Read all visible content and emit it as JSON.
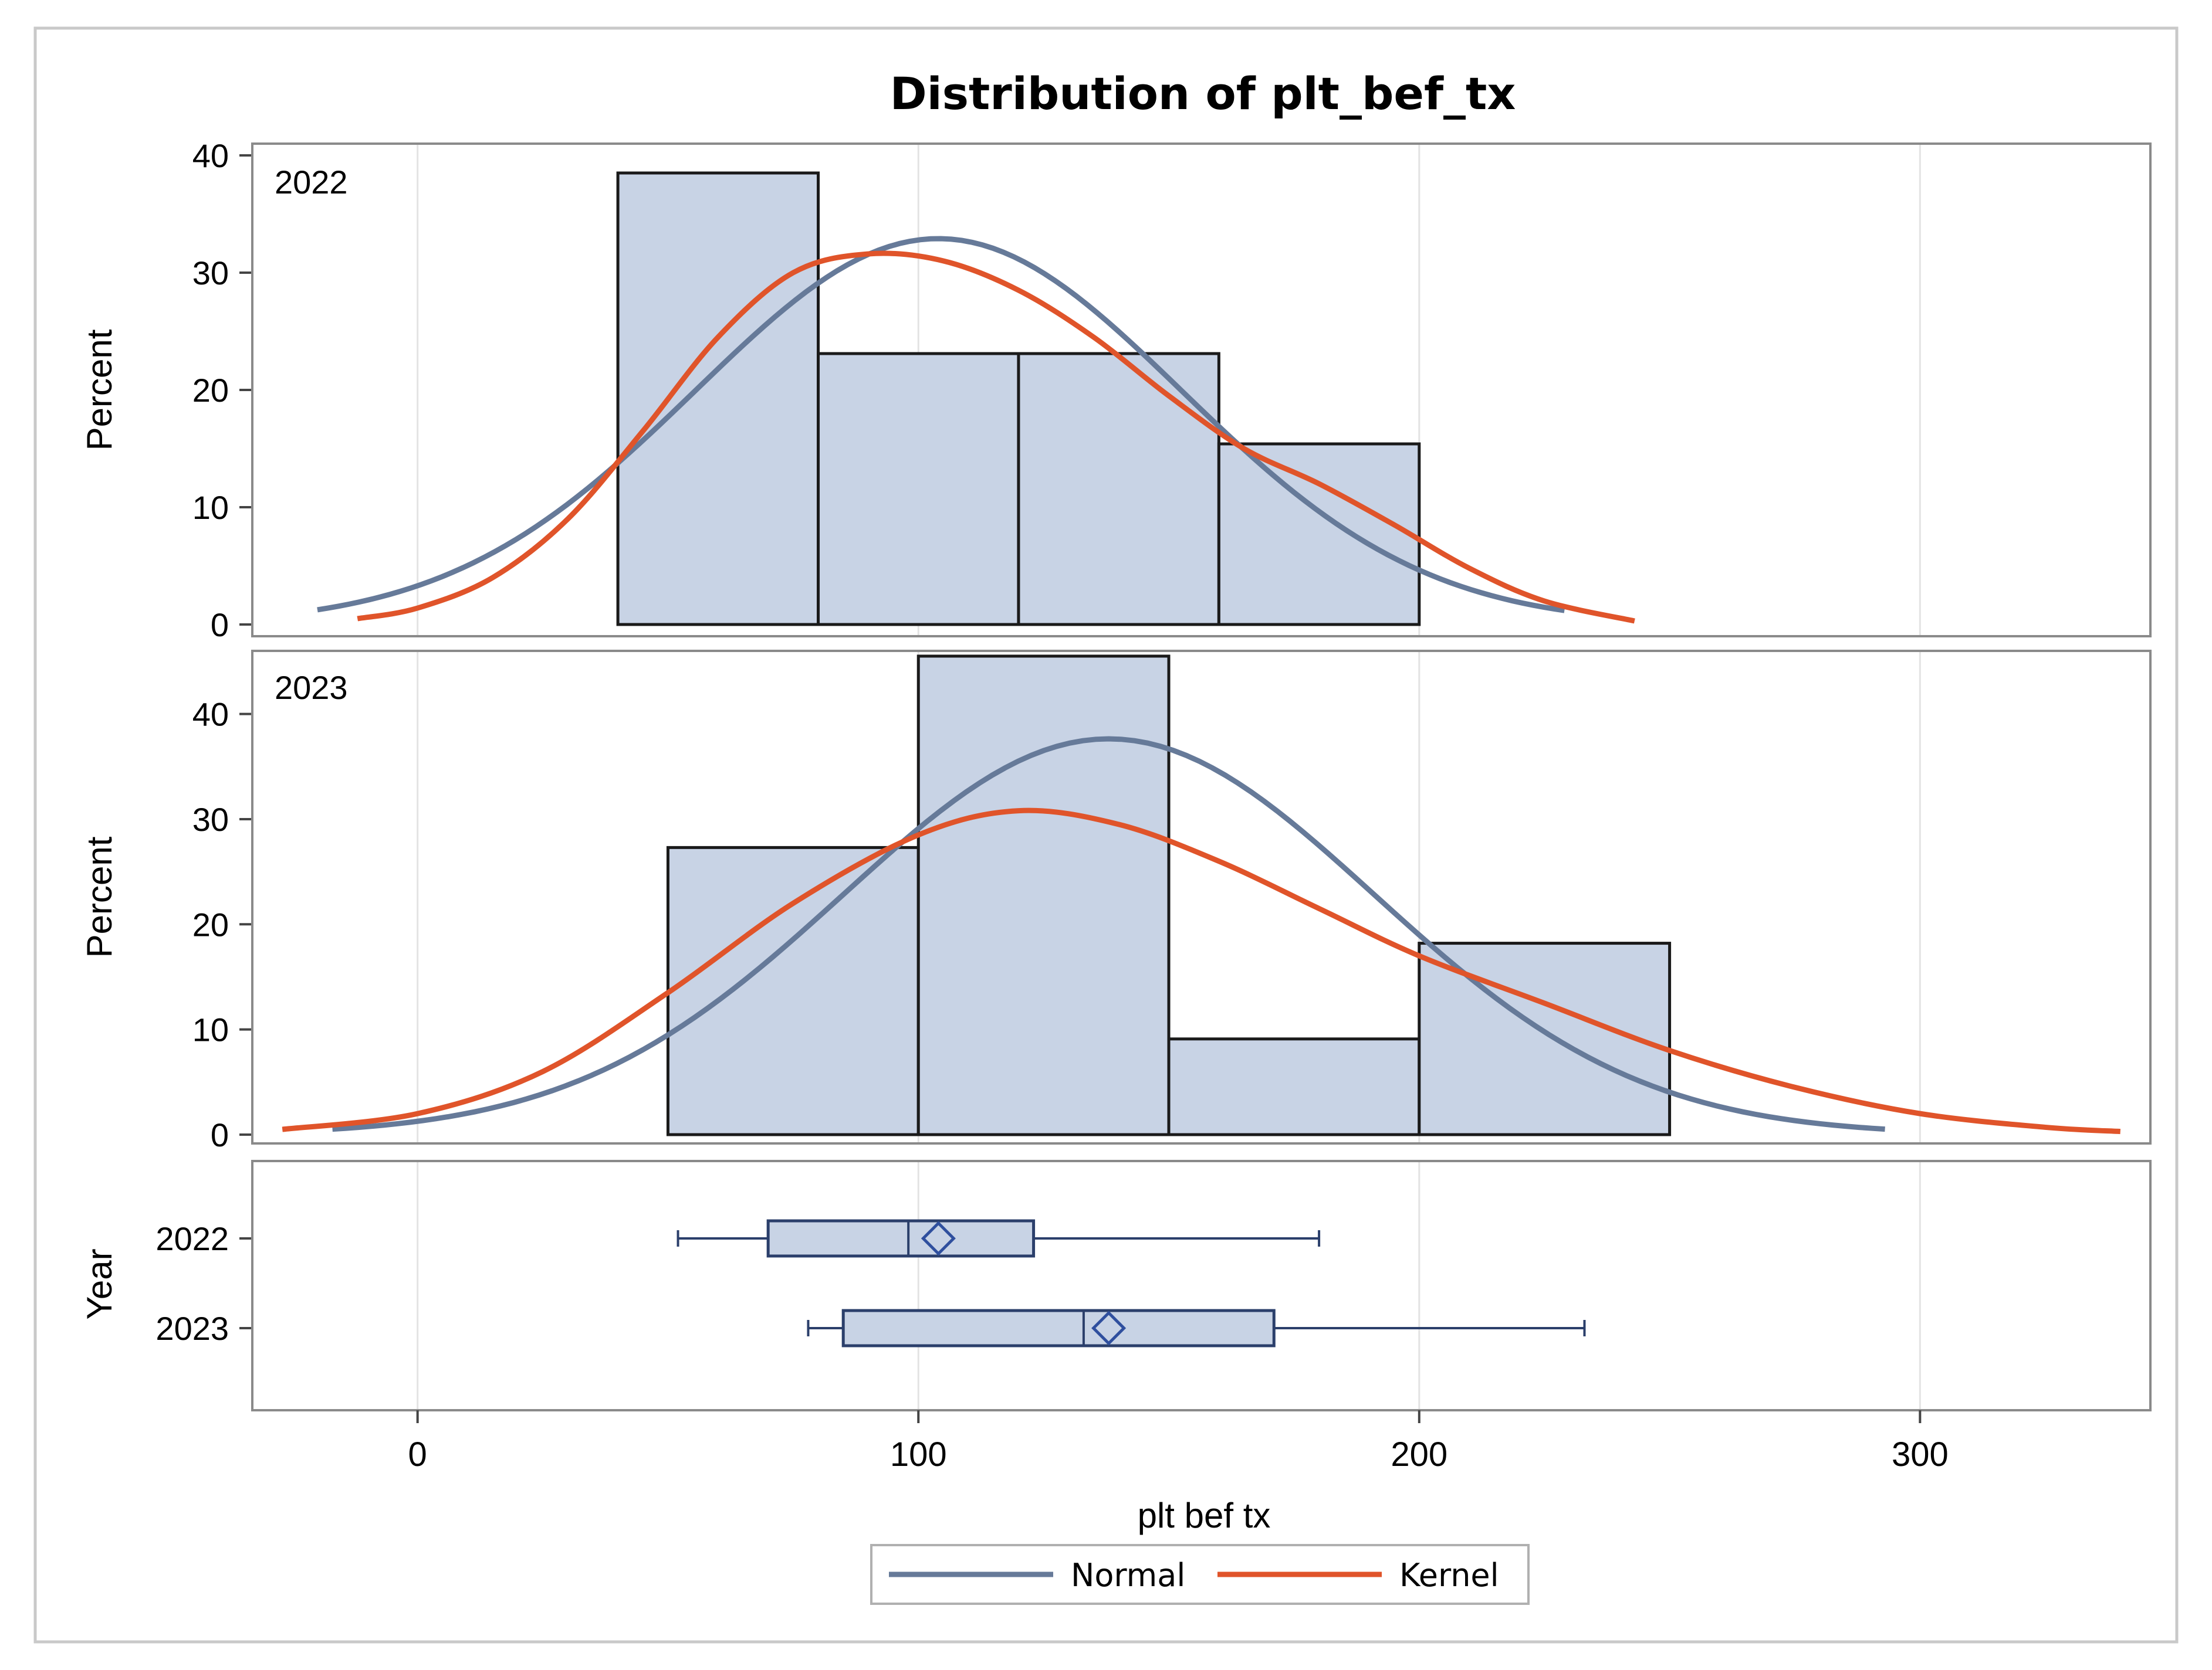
{
  "chart_data": {
    "type": "histogram",
    "title": "Distribution of plt_bef_tx",
    "xlabel": "plt bef tx",
    "xlim": [
      -33,
      346
    ],
    "x_ticks": [
      0,
      100,
      200,
      300
    ],
    "x_tick_labels": [
      "0",
      "100",
      "200",
      "300"
    ],
    "grid": "vertical",
    "colors": {
      "bar_fill": "#c8d3e5",
      "bar_stroke": "#1a1a1a",
      "normal": "#667a99",
      "kernel": "#e0542a",
      "box_stroke": "#2b3f6b",
      "grid": "#e3e3e3",
      "frame": "#8a8a8a",
      "outer_border": "#c9c9c9"
    },
    "panels": [
      {
        "label": "2022",
        "ylabel": "Percent",
        "ylim": [
          0,
          41
        ],
        "y_ticks": [
          0,
          10,
          20,
          30,
          40
        ],
        "y_tick_labels": [
          "0",
          "10",
          "20",
          "30",
          "40"
        ],
        "bin_edges": [
          40,
          80,
          120,
          160,
          200
        ],
        "values": [
          38.5,
          23.1,
          23.1,
          15.4
        ],
        "normal": {
          "mean": 104,
          "sd": 48.5,
          "x_range": [
            -20,
            229
          ]
        },
        "kernel": {
          "x": [
            -12,
            0,
            15,
            30,
            45,
            60,
            75,
            90,
            105,
            120,
            135,
            150,
            165,
            180,
            195,
            210,
            225,
            243
          ],
          "y": [
            0.5,
            1.4,
            4.0,
            9.0,
            16.5,
            24.5,
            30.0,
            31.6,
            31.0,
            28.5,
            24.5,
            19.5,
            15.0,
            12.0,
            8.5,
            4.8,
            2.0,
            0.3
          ]
        }
      },
      {
        "label": "2023",
        "ylabel": "Percent",
        "ylim": [
          0,
          46
        ],
        "y_ticks": [
          0,
          10,
          20,
          30,
          40
        ],
        "y_tick_labels": [
          "0",
          "10",
          "20",
          "30",
          "40"
        ],
        "bin_edges": [
          50,
          100,
          150,
          200,
          250
        ],
        "values": [
          27.3,
          45.5,
          9.1,
          18.2
        ],
        "normal": {
          "mean": 138,
          "sd": 53,
          "x_range": [
            -17,
            293
          ]
        },
        "kernel": {
          "x": [
            -27,
            0,
            25,
            50,
            75,
            100,
            120,
            140,
            160,
            180,
            200,
            225,
            250,
            275,
            300,
            325,
            340
          ],
          "y": [
            0.5,
            2.0,
            6.0,
            13.5,
            22.0,
            28.5,
            30.8,
            29.5,
            26.0,
            21.5,
            17.0,
            12.5,
            8.0,
            4.5,
            2.0,
            0.7,
            0.3
          ]
        }
      }
    ],
    "boxplot": {
      "ylabel": "Year",
      "groups": [
        {
          "label": "2022",
          "whisker_low": 52,
          "q1": 70,
          "median": 98,
          "mean": 104,
          "q3": 123,
          "whisker_high": 180
        },
        {
          "label": "2023",
          "whisker_low": 78,
          "q1": 85,
          "median": 133,
          "mean": 138,
          "q3": 171,
          "whisker_high": 233
        }
      ]
    },
    "legend": {
      "position": "bottom",
      "entries": [
        {
          "label": "Normal",
          "series": "normal"
        },
        {
          "label": "Kernel",
          "series": "kernel"
        }
      ]
    }
  }
}
